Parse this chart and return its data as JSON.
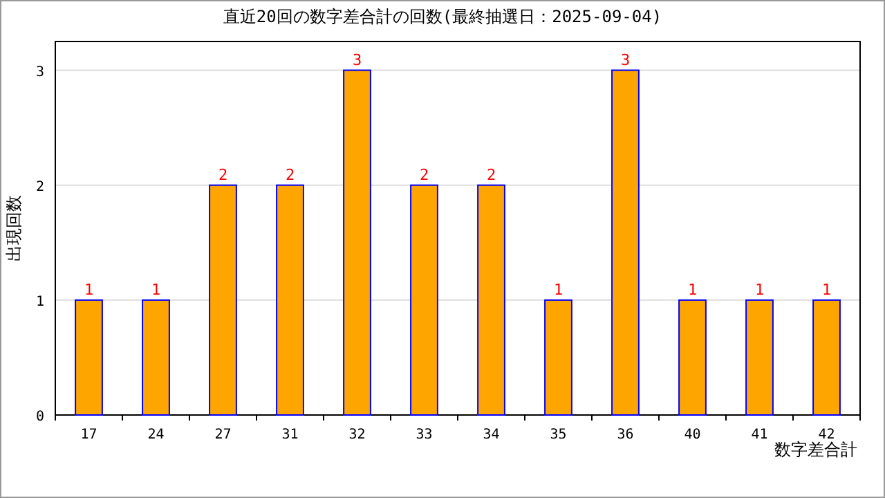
{
  "chart_data": {
    "type": "bar",
    "title": "直近20回の数字差合計の回数(最終抽選日：2025-09-04)",
    "xlabel": "数字差合計",
    "ylabel": "出現回数",
    "categories": [
      "17",
      "24",
      "27",
      "31",
      "32",
      "33",
      "34",
      "35",
      "36",
      "40",
      "41",
      "42"
    ],
    "values": [
      1,
      1,
      2,
      2,
      3,
      2,
      2,
      1,
      3,
      1,
      1,
      1
    ],
    "color": "#ffa500",
    "data_labels": true,
    "ylim": [
      0,
      3.25
    ],
    "yticks": [
      0,
      1,
      2,
      3
    ],
    "grid": "y"
  }
}
